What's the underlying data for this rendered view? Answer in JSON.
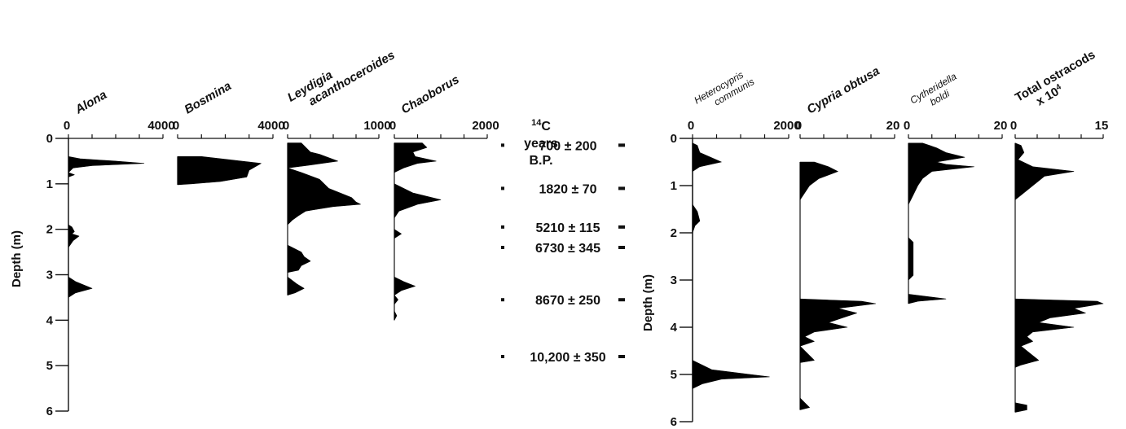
{
  "chart_data": [
    {
      "type": "area",
      "title_lines": [
        "Alona"
      ],
      "title_style": "bold-italic",
      "xlim": [
        0,
        4000
      ],
      "xticks": [
        "0",
        "4000"
      ],
      "ylabel": "Depth (m)",
      "ylim": [
        0,
        6
      ],
      "yticks": [
        "0",
        "1",
        "2",
        "3",
        "4",
        "5",
        "6"
      ],
      "profiles": [
        [
          [
            0.0,
            0
          ],
          [
            0.1,
            0
          ],
          [
            0.4,
            0
          ],
          [
            0.45,
            500
          ],
          [
            0.5,
            2000
          ],
          [
            0.55,
            3200
          ],
          [
            0.6,
            1000
          ],
          [
            0.65,
            200
          ],
          [
            0.75,
            0
          ],
          [
            0.8,
            250
          ],
          [
            0.85,
            0
          ],
          [
            1.9,
            0
          ],
          [
            1.95,
            150
          ],
          [
            2.05,
            250
          ],
          [
            2.1,
            150
          ],
          [
            2.15,
            450
          ],
          [
            2.25,
            200
          ],
          [
            2.4,
            0
          ],
          [
            2.6,
            0
          ],
          [
            3.05,
            0
          ],
          [
            3.15,
            300
          ],
          [
            3.3,
            1000
          ],
          [
            3.4,
            300
          ],
          [
            3.5,
            0
          ]
        ]
      ]
    },
    {
      "type": "area",
      "title_lines": [
        "Bosmina"
      ],
      "title_style": "bold-italic",
      "xlim": [
        0,
        4000
      ],
      "xticks": [
        "0",
        "4000"
      ],
      "ylim": [
        0,
        6
      ],
      "profiles": [
        [
          [
            0.4,
            0
          ],
          [
            0.4,
            1000
          ],
          [
            0.55,
            3500
          ],
          [
            0.7,
            3000
          ],
          [
            0.85,
            2900
          ],
          [
            0.95,
            1800
          ],
          [
            1.0,
            600
          ],
          [
            1.02,
            0
          ]
        ]
      ]
    },
    {
      "type": "area",
      "title_lines": [
        "Leydigia",
        "acanthoceroides"
      ],
      "title_style": "bold-italic",
      "xlim": [
        0,
        1000
      ],
      "xticks": [
        "0",
        "1000"
      ],
      "ylim": [
        0,
        6
      ],
      "profiles": [
        [
          [
            0.1,
            0
          ],
          [
            0.1,
            150
          ],
          [
            0.3,
            250
          ],
          [
            0.35,
            350
          ],
          [
            0.5,
            550
          ],
          [
            0.6,
            200
          ],
          [
            0.65,
            0
          ]
        ],
        [
          [
            0.65,
            0
          ],
          [
            0.75,
            150
          ],
          [
            0.9,
            350
          ],
          [
            1.1,
            450
          ],
          [
            1.3,
            700
          ],
          [
            1.4,
            750
          ],
          [
            1.45,
            800
          ],
          [
            1.5,
            500
          ],
          [
            1.6,
            200
          ],
          [
            1.7,
            120
          ],
          [
            1.8,
            50
          ],
          [
            1.9,
            0
          ]
        ],
        [
          [
            2.35,
            0
          ],
          [
            2.5,
            150
          ],
          [
            2.6,
            180
          ],
          [
            2.7,
            250
          ],
          [
            2.8,
            150
          ],
          [
            2.9,
            120
          ],
          [
            2.95,
            0
          ]
        ],
        [
          [
            3.05,
            0
          ],
          [
            3.2,
            100
          ],
          [
            3.3,
            180
          ],
          [
            3.4,
            80
          ],
          [
            3.45,
            0
          ]
        ]
      ]
    },
    {
      "type": "area",
      "title_lines": [
        "Chaoborus"
      ],
      "title_style": "bold-italic",
      "xlim": [
        0,
        2000
      ],
      "xticks": [
        "0",
        "2000"
      ],
      "ylim": [
        0,
        6
      ],
      "profiles": [
        [
          [
            0.1,
            0
          ],
          [
            0.1,
            600
          ],
          [
            0.2,
            700
          ],
          [
            0.3,
            400
          ],
          [
            0.4,
            450
          ],
          [
            0.5,
            900
          ],
          [
            0.55,
            500
          ],
          [
            0.65,
            200
          ],
          [
            0.75,
            0
          ]
        ],
        [
          [
            1.0,
            0
          ],
          [
            1.1,
            200
          ],
          [
            1.2,
            400
          ],
          [
            1.35,
            1000
          ],
          [
            1.45,
            500
          ],
          [
            1.6,
            100
          ],
          [
            1.75,
            0
          ]
        ],
        [
          [
            2.0,
            0
          ],
          [
            2.1,
            150
          ],
          [
            2.2,
            0
          ]
        ],
        [
          [
            3.05,
            0
          ],
          [
            3.15,
            200
          ],
          [
            3.25,
            450
          ],
          [
            3.35,
            150
          ],
          [
            3.45,
            0
          ],
          [
            3.55,
            80
          ],
          [
            3.65,
            0
          ]
        ],
        [
          [
            3.8,
            0
          ],
          [
            3.9,
            50
          ],
          [
            4.0,
            0
          ]
        ]
      ]
    },
    {
      "type": "area",
      "title_lines": [
        "Heterocypris",
        "communis"
      ],
      "title_style": "italic",
      "xlim": [
        0,
        2000
      ],
      "xticks": [
        "0",
        "2000"
      ],
      "ylim": [
        0,
        6
      ],
      "profiles": [
        [
          [
            0.1,
            0
          ],
          [
            0.15,
            100
          ],
          [
            0.3,
            150
          ],
          [
            0.5,
            600
          ],
          [
            0.6,
            150
          ],
          [
            0.7,
            0
          ]
        ],
        [
          [
            1.4,
            0
          ],
          [
            1.55,
            100
          ],
          [
            1.75,
            150
          ],
          [
            1.85,
            50
          ],
          [
            2.0,
            0
          ]
        ],
        [
          [
            4.7,
            0
          ],
          [
            4.8,
            200
          ],
          [
            4.9,
            400
          ],
          [
            5.0,
            1200
          ],
          [
            5.05,
            1600
          ],
          [
            5.1,
            600
          ],
          [
            5.2,
            200
          ],
          [
            5.3,
            0
          ]
        ]
      ]
    },
    {
      "type": "area",
      "title_lines": [
        "Cypria obtusa"
      ],
      "title_style": "bold-italic",
      "xlim": [
        0,
        20
      ],
      "xticks": [
        "0",
        "20"
      ],
      "ylim": [
        0,
        6
      ],
      "profiles": [
        [
          [
            0.5,
            0
          ],
          [
            0.5,
            3
          ],
          [
            0.6,
            6
          ],
          [
            0.7,
            8
          ],
          [
            0.85,
            4
          ],
          [
            1.0,
            2
          ],
          [
            1.15,
            1
          ],
          [
            1.3,
            0
          ]
        ],
        [
          [
            3.4,
            0
          ],
          [
            3.45,
            13
          ],
          [
            3.5,
            16
          ],
          [
            3.6,
            8
          ],
          [
            3.7,
            12
          ],
          [
            3.8,
            9
          ],
          [
            3.9,
            6
          ],
          [
            4.0,
            10
          ],
          [
            4.1,
            3
          ],
          [
            4.2,
            1
          ],
          [
            4.3,
            3
          ],
          [
            4.4,
            0
          ],
          [
            4.6,
            2
          ],
          [
            4.7,
            3
          ],
          [
            4.75,
            0
          ]
        ],
        [
          [
            5.5,
            0
          ],
          [
            5.6,
            1
          ],
          [
            5.7,
            2
          ],
          [
            5.75,
            0
          ]
        ]
      ]
    },
    {
      "type": "area",
      "title_lines": [
        "Cytheridella",
        "boldi"
      ],
      "title_style": "italic",
      "xlim": [
        0,
        20
      ],
      "xticks": [
        "0",
        "20"
      ],
      "ylim": [
        0,
        6
      ],
      "profiles": [
        [
          [
            0.1,
            0
          ],
          [
            0.1,
            3
          ],
          [
            0.2,
            6
          ],
          [
            0.3,
            8
          ],
          [
            0.4,
            12
          ],
          [
            0.5,
            6
          ],
          [
            0.55,
            8
          ],
          [
            0.6,
            14
          ],
          [
            0.7,
            5
          ],
          [
            0.85,
            3
          ],
          [
            1.0,
            2
          ],
          [
            1.2,
            1
          ],
          [
            1.4,
            0
          ]
        ],
        [
          [
            2.1,
            0
          ],
          [
            2.2,
            1
          ],
          [
            2.6,
            1
          ],
          [
            2.9,
            1
          ],
          [
            3.0,
            0
          ]
        ],
        [
          [
            3.3,
            0
          ],
          [
            3.35,
            4
          ],
          [
            3.4,
            8
          ],
          [
            3.45,
            2
          ],
          [
            3.5,
            0
          ]
        ]
      ]
    },
    {
      "type": "area",
      "title_lines": [
        "Total ostracods",
        "x 10"
      ],
      "title_superscript": "4",
      "title_style": "bold",
      "xlim": [
        0,
        15
      ],
      "xticks": [
        "0",
        "15"
      ],
      "ylabel": "Depth (m)",
      "ylim": [
        0,
        6
      ],
      "yticks": [
        "0",
        "1",
        "2",
        "3",
        "4",
        "5",
        "6"
      ],
      "profiles": [
        [
          [
            0.1,
            0
          ],
          [
            0.15,
            1
          ],
          [
            0.3,
            1.5
          ],
          [
            0.45,
            0.5
          ],
          [
            0.6,
            3
          ],
          [
            0.7,
            10
          ],
          [
            0.8,
            5
          ],
          [
            1.0,
            3
          ],
          [
            1.2,
            1
          ],
          [
            1.3,
            0
          ]
        ],
        [
          [
            3.4,
            0
          ],
          [
            3.45,
            14
          ],
          [
            3.5,
            15
          ],
          [
            3.6,
            10
          ],
          [
            3.7,
            12
          ],
          [
            3.8,
            6
          ],
          [
            3.9,
            4
          ],
          [
            4.0,
            10
          ],
          [
            4.1,
            3
          ],
          [
            4.2,
            2
          ],
          [
            4.3,
            3
          ],
          [
            4.4,
            1
          ],
          [
            4.6,
            3
          ],
          [
            4.7,
            4
          ],
          [
            4.8,
            1
          ],
          [
            4.85,
            0
          ]
        ],
        [
          [
            5.6,
            0
          ],
          [
            5.65,
            2
          ],
          [
            5.75,
            2
          ],
          [
            5.8,
            0
          ]
        ]
      ]
    }
  ],
  "radiocarbon": {
    "heading_lines": [
      "14C",
      "years",
      "B.P."
    ],
    "heading_superscript": "14",
    "dates": [
      {
        "label": "700 ± 200",
        "depth": 0.15
      },
      {
        "label": "1820 ± 70",
        "depth": 1.1
      },
      {
        "label": "5210 ± 115",
        "depth": 1.95
      },
      {
        "label": "6730 ± 345",
        "depth": 2.4
      },
      {
        "label": "8670 ± 250",
        "depth": 3.55
      },
      {
        "label": "10,200 ± 350",
        "depth": 4.8
      }
    ]
  }
}
